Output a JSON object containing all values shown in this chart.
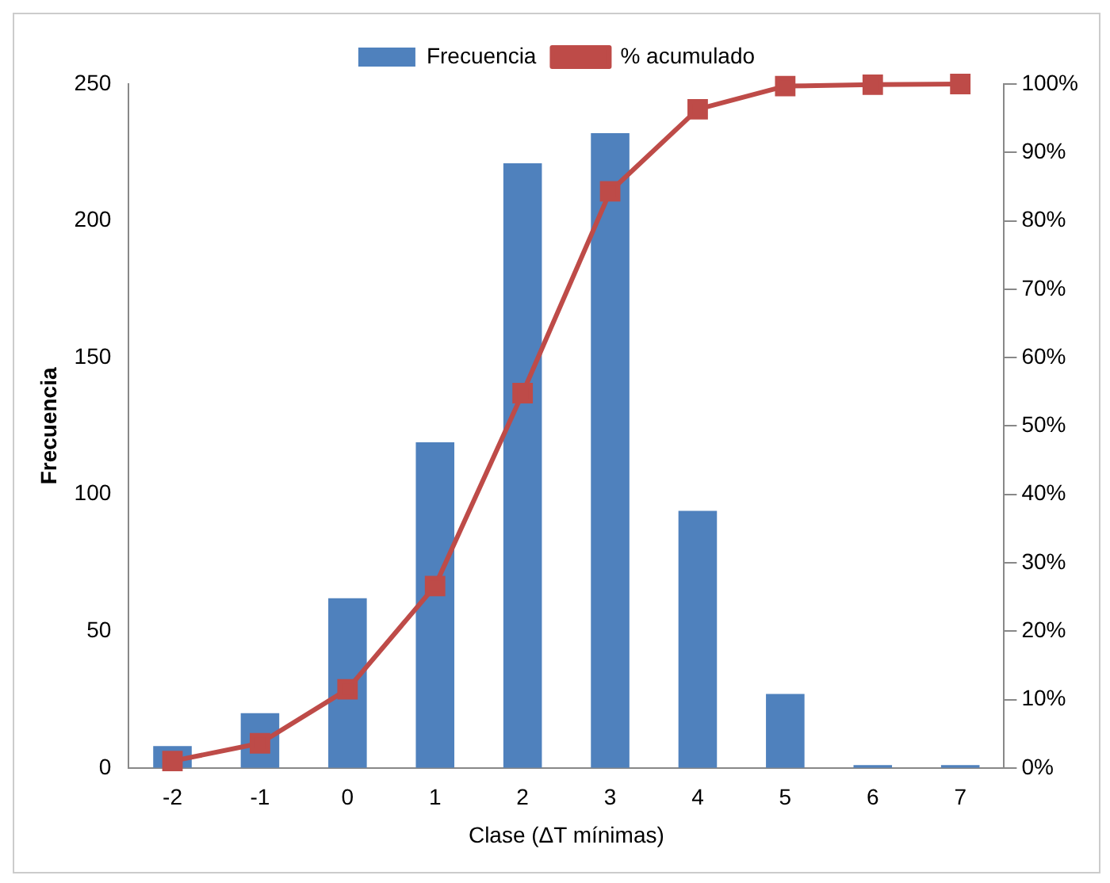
{
  "chart_data": {
    "type": "bar",
    "xlabel": "Clase (ΔT mínimas)",
    "ylabel": "Frecuencia",
    "categories": [
      "-2",
      "-1",
      "0",
      "1",
      "2",
      "3",
      "4",
      "5",
      "6",
      "7"
    ],
    "series": [
      {
        "name": "Frecuencia",
        "color": "#4f81bd",
        "values": [
          8,
          20,
          62,
          119,
          221,
          232,
          94,
          27,
          1,
          1
        ]
      },
      {
        "name": "% acumulado",
        "type": "line",
        "axis": "y2",
        "color": "#be4b48",
        "marker": "square",
        "values": [
          1.0,
          3.6,
          11.5,
          26.6,
          54.8,
          84.3,
          96.3,
          99.7,
          99.9,
          100
        ]
      }
    ],
    "ylim": [
      0,
      250
    ],
    "yticks": [
      0,
      50,
      100,
      150,
      200,
      250
    ],
    "y2lim": [
      0,
      100
    ],
    "y2ticks": [
      {
        "value": 0,
        "label": "0%"
      },
      {
        "value": 10,
        "label": "10%"
      },
      {
        "value": 20,
        "label": "20%"
      },
      {
        "value": 30,
        "label": "30%"
      },
      {
        "value": 40,
        "label": "40%"
      },
      {
        "value": 50,
        "label": "50%"
      },
      {
        "value": 60,
        "label": "60%"
      },
      {
        "value": 70,
        "label": "70%"
      },
      {
        "value": 80,
        "label": "80%"
      },
      {
        "value": 90,
        "label": "90%"
      },
      {
        "value": 100,
        "label": "100%"
      }
    ],
    "grid": false,
    "legend": "top"
  }
}
